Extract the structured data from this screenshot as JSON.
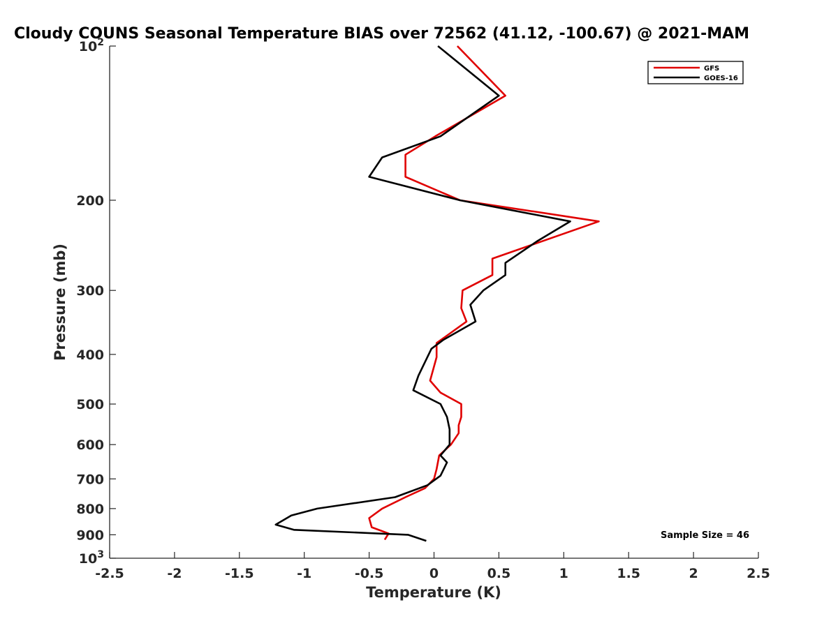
{
  "chart_data": {
    "type": "line",
    "title": "Cloudy COUNS Seasonal Temperature BIAS over 72562 (41.12, -100.67) @ 2021-MAM",
    "xlabel": "Temperature (K)",
    "ylabel": "Pressure (mb)",
    "xlim": [
      -2.5,
      2.5
    ],
    "ylim": [
      100,
      1000
    ],
    "y_scale": "log",
    "y_reversed": true,
    "x_ticks": [
      "-2.5",
      "-2",
      "-1.5",
      "-1",
      "-0.5",
      "0",
      "0.5",
      "1",
      "1.5",
      "2",
      "2.5"
    ],
    "x_tick_values": [
      -2.5,
      -2,
      -1.5,
      -1,
      -0.5,
      0,
      0.5,
      1,
      1.5,
      2,
      2.5
    ],
    "y_ticks": [
      {
        "value": 100,
        "base": "10",
        "exp": "2",
        "label": ""
      },
      {
        "value": 200,
        "label": "200"
      },
      {
        "value": 300,
        "label": "300"
      },
      {
        "value": 400,
        "label": "400"
      },
      {
        "value": 500,
        "label": "500"
      },
      {
        "value": 600,
        "label": "600"
      },
      {
        "value": 700,
        "label": "700"
      },
      {
        "value": 800,
        "label": "800"
      },
      {
        "value": 900,
        "label": "900"
      },
      {
        "value": 1000,
        "base": "10",
        "exp": "3",
        "label": ""
      }
    ],
    "grid": false,
    "legend_position": "top-right",
    "annotation": "Sample Size = 46",
    "series": [
      {
        "name": "GFS",
        "color": "#e00000",
        "points": [
          [
            0.18,
            100
          ],
          [
            0.55,
            125
          ],
          [
            0.01,
            150
          ],
          [
            -0.22,
            163
          ],
          [
            -0.22,
            180
          ],
          [
            0.2,
            200
          ],
          [
            1.27,
            220
          ],
          [
            0.45,
            260
          ],
          [
            0.45,
            280
          ],
          [
            0.22,
            300
          ],
          [
            0.21,
            325
          ],
          [
            0.25,
            345
          ],
          [
            0.02,
            380
          ],
          [
            0.02,
            405
          ],
          [
            -0.03,
            450
          ],
          [
            0.05,
            475
          ],
          [
            0.21,
            500
          ],
          [
            0.21,
            530
          ],
          [
            0.19,
            550
          ],
          [
            0.19,
            570
          ],
          [
            0.13,
            600
          ],
          [
            0.04,
            630
          ],
          [
            0.02,
            670
          ],
          [
            0.0,
            700
          ],
          [
            -0.07,
            730
          ],
          [
            -0.22,
            760
          ],
          [
            -0.4,
            800
          ],
          [
            -0.5,
            835
          ],
          [
            -0.48,
            870
          ],
          [
            -0.35,
            895
          ],
          [
            -0.38,
            920
          ]
        ]
      },
      {
        "name": "GOES-16",
        "color": "#000000",
        "points": [
          [
            0.03,
            100
          ],
          [
            0.5,
            125
          ],
          [
            0.05,
            150
          ],
          [
            -0.4,
            165
          ],
          [
            -0.5,
            180
          ],
          [
            0.2,
            200
          ],
          [
            1.05,
            220
          ],
          [
            0.8,
            240
          ],
          [
            0.55,
            265
          ],
          [
            0.55,
            280
          ],
          [
            0.38,
            300
          ],
          [
            0.28,
            320
          ],
          [
            0.32,
            345
          ],
          [
            0.07,
            375
          ],
          [
            -0.02,
            390
          ],
          [
            -0.12,
            440
          ],
          [
            -0.16,
            470
          ],
          [
            0.05,
            500
          ],
          [
            0.1,
            530
          ],
          [
            0.12,
            560
          ],
          [
            0.12,
            600
          ],
          [
            0.05,
            630
          ],
          [
            0.1,
            650
          ],
          [
            0.05,
            690
          ],
          [
            -0.05,
            720
          ],
          [
            -0.3,
            760
          ],
          [
            -0.9,
            800
          ],
          [
            -1.1,
            825
          ],
          [
            -1.22,
            860
          ],
          [
            -1.08,
            880
          ],
          [
            -0.2,
            900
          ],
          [
            -0.06,
            925
          ]
        ]
      }
    ]
  }
}
